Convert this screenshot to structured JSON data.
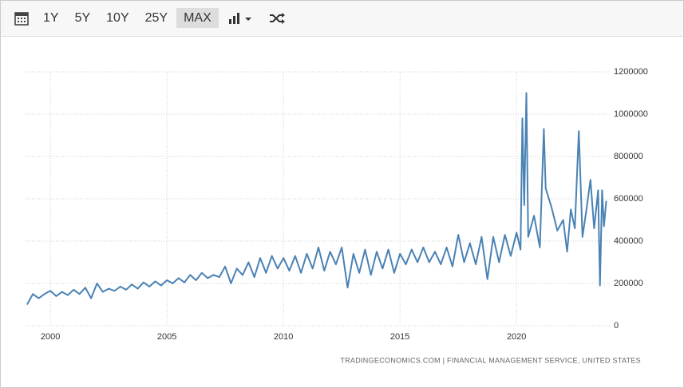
{
  "toolbar": {
    "ranges": [
      "1Y",
      "5Y",
      "10Y",
      "25Y",
      "MAX"
    ],
    "active": "MAX"
  },
  "chart_data": {
    "type": "line",
    "source": "TRADINGECONOMICS.COM  |  FINANCIAL MANAGEMENT SERVICE, UNITED STATES",
    "x": [
      1999.0,
      1999.25,
      1999.5,
      1999.75,
      2000.0,
      2000.25,
      2000.5,
      2000.75,
      2001.0,
      2001.25,
      2001.5,
      2001.75,
      2002.0,
      2002.25,
      2002.5,
      2002.75,
      2003.0,
      2003.25,
      2003.5,
      2003.75,
      2004.0,
      2004.25,
      2004.5,
      2004.75,
      2005.0,
      2005.25,
      2005.5,
      2005.75,
      2006.0,
      2006.25,
      2006.5,
      2006.75,
      2007.0,
      2007.25,
      2007.5,
      2007.75,
      2008.0,
      2008.25,
      2008.5,
      2008.75,
      2009.0,
      2009.25,
      2009.5,
      2009.75,
      2010.0,
      2010.25,
      2010.5,
      2010.75,
      2011.0,
      2011.25,
      2011.5,
      2011.75,
      2012.0,
      2012.25,
      2012.5,
      2012.75,
      2013.0,
      2013.25,
      2013.5,
      2013.75,
      2014.0,
      2014.25,
      2014.5,
      2014.75,
      2015.0,
      2015.25,
      2015.5,
      2015.75,
      2016.0,
      2016.25,
      2016.5,
      2016.75,
      2017.0,
      2017.25,
      2017.5,
      2017.75,
      2018.0,
      2018.25,
      2018.5,
      2018.75,
      2019.0,
      2019.25,
      2019.5,
      2019.75,
      2020.0,
      2020.17,
      2020.25,
      2020.33,
      2020.42,
      2020.5,
      2020.75,
      2021.0,
      2021.17,
      2021.25,
      2021.5,
      2021.75,
      2022.0,
      2022.17,
      2022.33,
      2022.5,
      2022.67,
      2022.83,
      2023.0,
      2023.17,
      2023.33,
      2023.5,
      2023.58,
      2023.67,
      2023.75,
      2023.85
    ],
    "series": [
      {
        "color": "#4a82b4",
        "values": [
          100000,
          150000,
          130000,
          150000,
          165000,
          140000,
          160000,
          145000,
          170000,
          150000,
          180000,
          130000,
          200000,
          160000,
          175000,
          165000,
          185000,
          170000,
          195000,
          175000,
          205000,
          185000,
          210000,
          190000,
          215000,
          200000,
          225000,
          205000,
          240000,
          215000,
          250000,
          225000,
          240000,
          230000,
          280000,
          200000,
          270000,
          240000,
          300000,
          230000,
          320000,
          250000,
          330000,
          270000,
          320000,
          260000,
          330000,
          250000,
          340000,
          270000,
          370000,
          260000,
          350000,
          290000,
          370000,
          180000,
          340000,
          250000,
          360000,
          240000,
          350000,
          270000,
          360000,
          250000,
          340000,
          290000,
          360000,
          300000,
          370000,
          300000,
          350000,
          290000,
          370000,
          280000,
          430000,
          300000,
          390000,
          290000,
          420000,
          220000,
          420000,
          300000,
          430000,
          330000,
          440000,
          360000,
          980000,
          570000,
          1100000,
          420000,
          520000,
          370000,
          930000,
          650000,
          560000,
          450000,
          500000,
          350000,
          550000,
          460000,
          920000,
          420000,
          550000,
          690000,
          460000,
          640000,
          190000,
          640000,
          470000,
          590000
        ]
      }
    ],
    "xlim": [
      1998.9,
      2024.0
    ],
    "xticks": [
      2000,
      2005,
      2010,
      2015,
      2020
    ],
    "ylim": [
      0,
      1200000
    ],
    "yticks": [
      0,
      200000,
      400000,
      600000,
      800000,
      1000000,
      1200000
    ],
    "grid": true
  }
}
